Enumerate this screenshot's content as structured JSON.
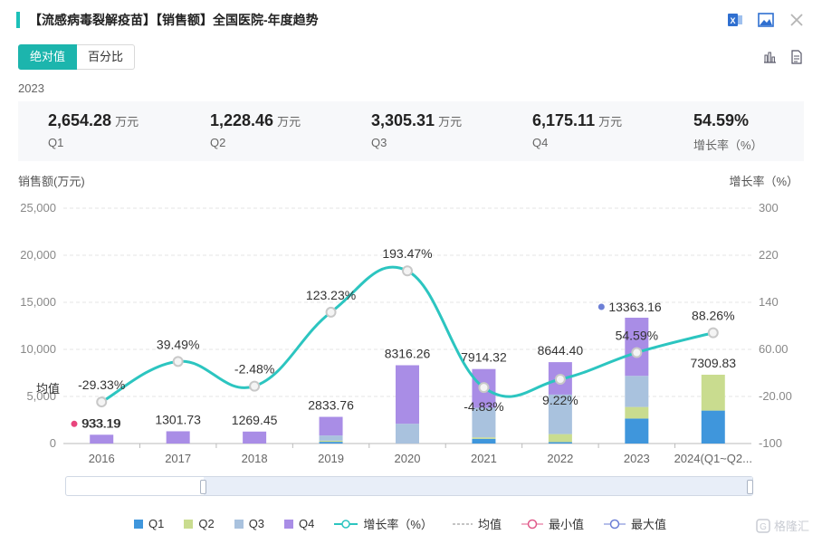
{
  "title": "【流感病毒裂解疫苗】【销售额】全国医院-年度趋势",
  "icons": {
    "excel": "excel-icon",
    "image": "image-icon",
    "close": "close-icon",
    "bar": "bar-chart-icon",
    "doc": "document-icon"
  },
  "toggle": {
    "absolute": "绝对值",
    "percent": "百分比"
  },
  "year": "2023",
  "summary": [
    {
      "value": "2,654.28",
      "unit": "万元",
      "label": "Q1"
    },
    {
      "value": "1,228.46",
      "unit": "万元",
      "label": "Q2"
    },
    {
      "value": "3,305.31",
      "unit": "万元",
      "label": "Q3"
    },
    {
      "value": "6,175.11",
      "unit": "万元",
      "label": "Q4"
    },
    {
      "value": "54.59%",
      "unit": "",
      "label": "增长率（%）"
    }
  ],
  "chart_data": {
    "type": "bar",
    "stacked": true,
    "ylabel": "销售额(万元)",
    "y2label": "增长率（%）",
    "ylim": [
      0,
      25000
    ],
    "yticks": [
      "0",
      "5,000",
      "10,000",
      "15,000",
      "20,000",
      "25,000"
    ],
    "y2lim": [
      -100,
      300
    ],
    "y2ticks": [
      "-100",
      "-20.00",
      "60.00",
      "140",
      "220",
      "300"
    ],
    "categories": [
      "2016",
      "2017",
      "2018",
      "2019",
      "2020",
      "2021",
      "2022",
      "2023",
      "2024(Q1~Q2..."
    ],
    "series": [
      {
        "name": "Q1",
        "color": "#3f96dc",
        "values": [
          0,
          0,
          0,
          180,
          0,
          500,
          150,
          2654.28,
          3500
        ]
      },
      {
        "name": "Q2",
        "color": "#c9dc8f",
        "values": [
          0,
          0,
          0,
          120,
          0,
          150,
          850,
          1228.46,
          3809.83
        ]
      },
      {
        "name": "Q3",
        "color": "#a9c2de",
        "values": [
          0,
          0,
          0,
          550,
          2100,
          3150,
          4200,
          3305.31,
          0
        ]
      },
      {
        "name": "Q4",
        "color": "#a98de6",
        "values": [
          933.19,
          1301.73,
          1269.45,
          1983.76,
          6216.26,
          4114.32,
          3444.4,
          6175.11,
          0
        ]
      }
    ],
    "totals": [
      "933.19",
      "1301.73",
      "1269.45",
      "2833.76",
      "8316.26",
      "7914.32",
      "8644.40",
      "13363.16",
      "7309.83"
    ],
    "growth": {
      "name": "增长率（%）",
      "color": "#2cc5c0",
      "values": [
        -29.33,
        39.49,
        -2.48,
        123.23,
        193.47,
        -4.83,
        9.22,
        54.59,
        88.26
      ],
      "labels": [
        "-29.33%",
        "39.49%",
        "-2.48%",
        "123.23%",
        "193.47%",
        "-4.83%",
        "9.22%",
        "54.59%",
        "88.26%"
      ]
    },
    "mean_label": "均值",
    "min_index": 0,
    "max_index": 7,
    "legend": [
      "Q1",
      "Q2",
      "Q3",
      "Q4",
      "增长率（%）",
      "均值",
      "最小值",
      "最大值"
    ]
  },
  "watermark": "格隆汇"
}
